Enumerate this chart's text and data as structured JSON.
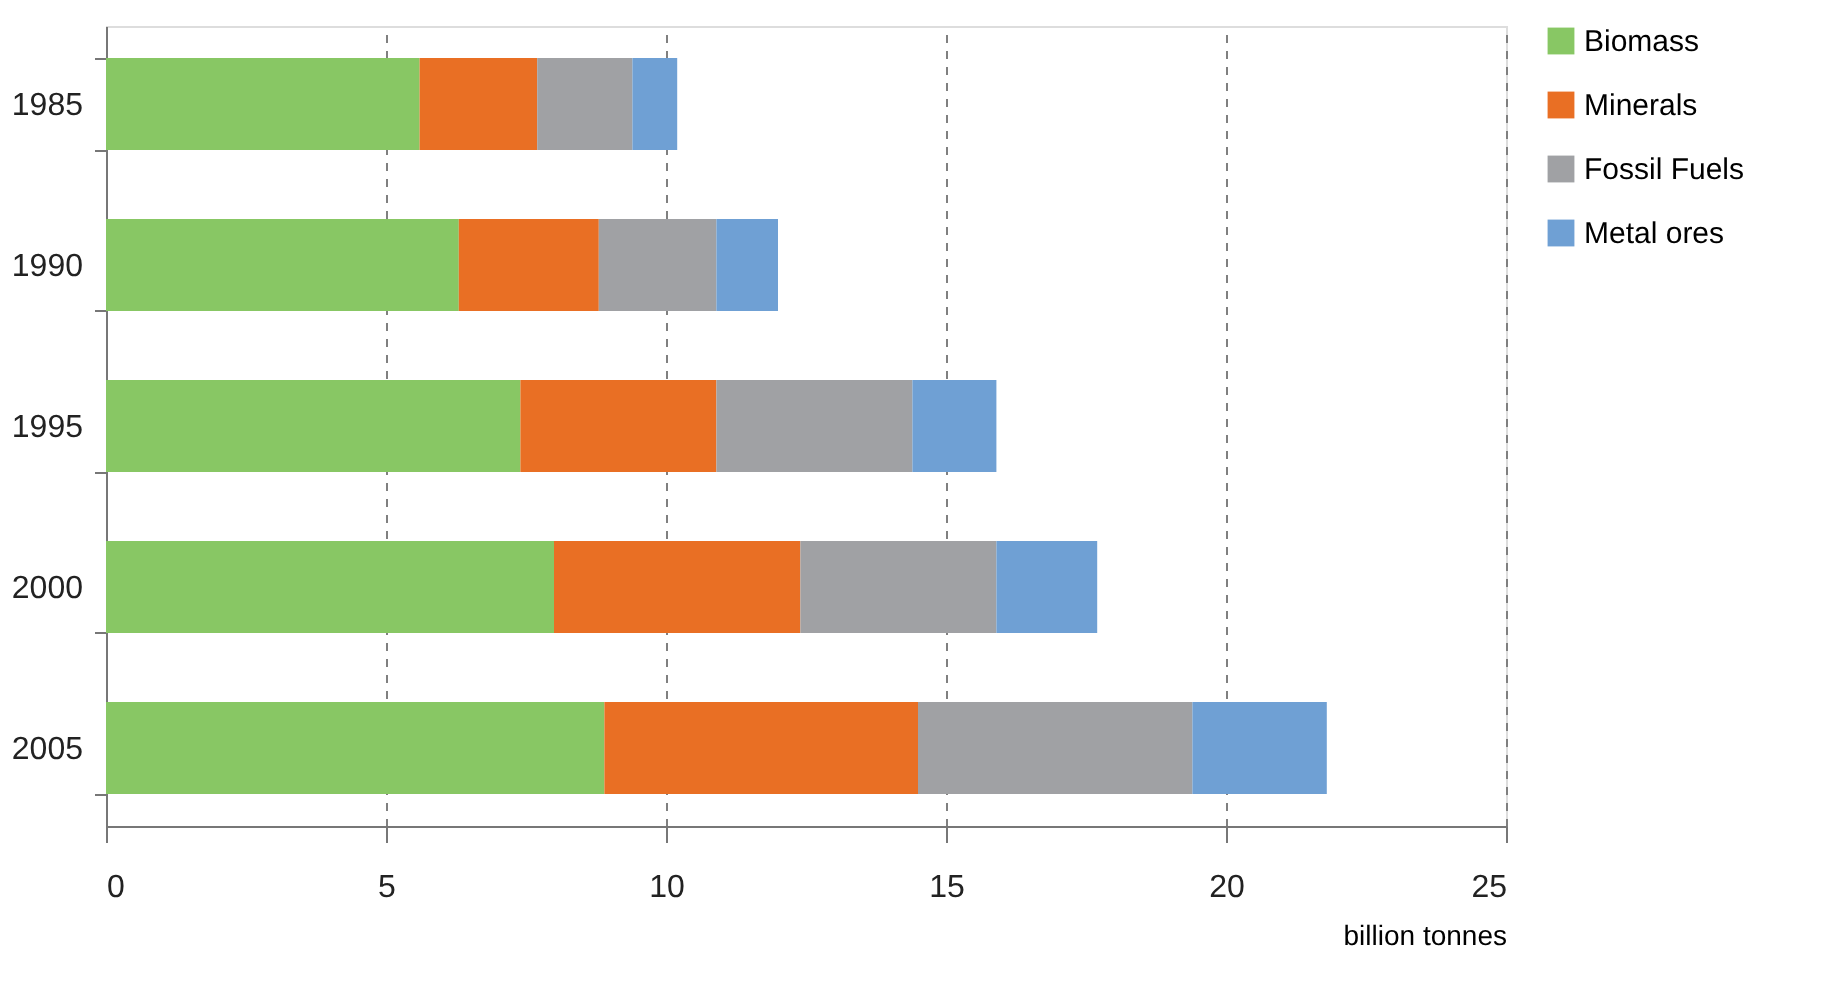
{
  "chart_data": {
    "type": "bar",
    "orientation": "horizontal",
    "stacked": true,
    "xlabel": "billion tonnes",
    "categories": [
      "1985",
      "1990",
      "1995",
      "2000",
      "2005"
    ],
    "series": [
      {
        "name": "Biomass",
        "color": "#88c764",
        "values": [
          5.6,
          6.3,
          7.4,
          8.0,
          8.9
        ]
      },
      {
        "name": "Minerals",
        "color": "#e96f24",
        "values": [
          2.1,
          2.5,
          3.5,
          4.4,
          5.6
        ]
      },
      {
        "name": "Fossil Fuels",
        "color": "#a0a1a4",
        "values": [
          1.7,
          2.1,
          3.5,
          3.5,
          4.9
        ]
      },
      {
        "name": "Metal ores",
        "color": "#6fa0d4",
        "values": [
          0.8,
          1.1,
          1.5,
          1.8,
          2.4
        ]
      }
    ],
    "xlim": [
      0,
      25
    ],
    "xticks": [
      0,
      5,
      10,
      15,
      20,
      25
    ],
    "grid": "x",
    "legend": "right"
  }
}
